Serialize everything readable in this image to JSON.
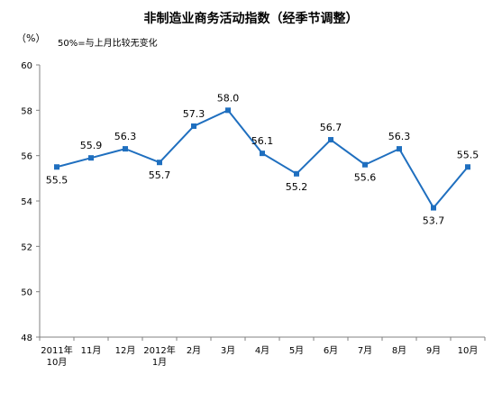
{
  "chart_data": {
    "type": "line",
    "title": "非制造业商务活动指数（经季节调整）",
    "unit": "（%）",
    "note": "50%=与上月比较无变化",
    "categories": [
      [
        "2011年",
        "10月"
      ],
      [
        "11月"
      ],
      [
        "12月"
      ],
      [
        "2012年",
        "1月"
      ],
      [
        "2月"
      ],
      [
        "3月"
      ],
      [
        "4月"
      ],
      [
        "5月"
      ],
      [
        "6月"
      ],
      [
        "7月"
      ],
      [
        "8月"
      ],
      [
        "9月"
      ],
      [
        "10月"
      ]
    ],
    "series": [
      {
        "values": [
          55.5,
          55.9,
          56.3,
          55.7,
          57.3,
          58.0,
          56.1,
          55.2,
          56.7,
          55.6,
          56.3,
          53.7,
          55.5
        ],
        "labels": [
          "55.5",
          "55.9",
          "56.3",
          "55.7",
          "57.3",
          "58.0",
          "56.1",
          "55.2",
          "56.7",
          "55.6",
          "56.3",
          "53.7",
          "55.5"
        ],
        "color": "#1f6fbf"
      }
    ],
    "ylim": [
      48,
      60
    ],
    "yticks": [
      48,
      50,
      52,
      54,
      56,
      58,
      60
    ],
    "grid": false,
    "legend": "none"
  }
}
